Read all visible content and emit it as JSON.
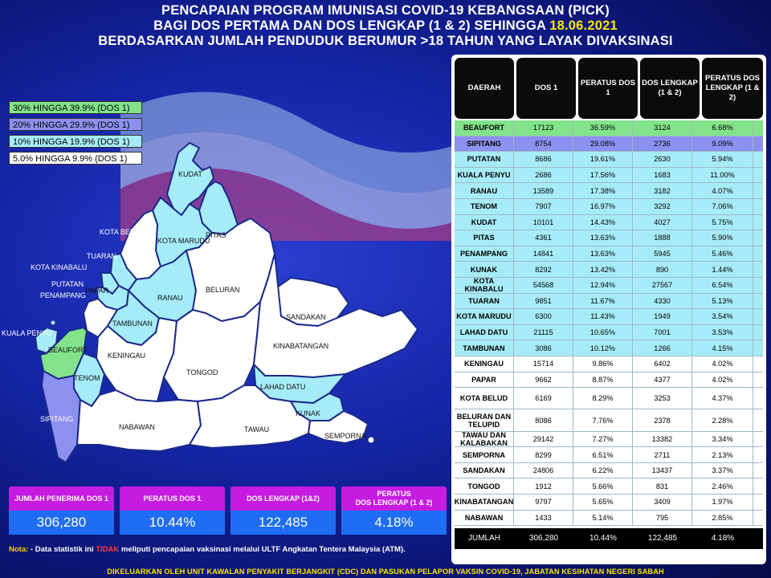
{
  "title": {
    "line1": "PENCAPAIAN PROGRAM IMUNISASI COVID-19 KEBANGSAAN (PICK)",
    "line2_prefix": "BAGI DOS PERTAMA DAN DOS LENGKAP (1 & 2) SEHINGGA ",
    "line2_date": "18.06.2021",
    "line3": "BERDASARKAN JUMLAH PENDUDUK BERUMUR >18 TAHUN YANG LAYAK DIVAKSINASI"
  },
  "legend": [
    {
      "label": "30% HINGGA 39.9% (DOS 1)",
      "color": "#82e38a"
    },
    {
      "label": "20% HINGGA 29.9% (DOS 1)",
      "color": "#8c90ee"
    },
    {
      "label": "10% HINGGA 19.9% (DOS 1)",
      "color": "#a6ecf8"
    },
    {
      "label": "5.0% HINGGA 9.9% (DOS 1)",
      "color": "#ffffff"
    }
  ],
  "map_labels": {
    "kudat": "KUDAT",
    "pitas": "PITAS",
    "kota_belud": "KOTA BELUD",
    "kota_marudu": "KOTA MARUDU",
    "tuaran": "TUARAN",
    "kota_kinabalu": "KOTA KINABALU",
    "putatan": "PUTATAN",
    "penampang": "PENAMPANG",
    "ranau": "RANAU",
    "beluran": "BELURAN",
    "papar": "PAPAR",
    "tambunan": "TAMBUNAN",
    "sandakan": "SANDAKAN",
    "kuala_penyu": "KUALA PENYU",
    "beaufort": "BEAUFORT",
    "keningau": "KENINGAU",
    "kinabatangan": "KINABATANGAN",
    "tongod": "TONGOD",
    "tenom": "TENOM",
    "lahad_datu": "LAHAD DATU",
    "sipitang": "SIPITANG",
    "kunak": "KUNAK",
    "nabawan": "NABAWAN",
    "tawau": "TAWAU",
    "semporna": "SEMPORNA"
  },
  "table": {
    "headers": {
      "daerah": "DAERAH",
      "dos1": "DOS 1",
      "peratus_dos1": "PERATUS DOS 1",
      "dos_lengkap": "DOS LENGKAP (1 & 2)",
      "peratus_dos_lengkap": "PERATUS DOS LENGKAP (1 & 2)"
    },
    "rows": [
      {
        "name": "BEAUFORT",
        "dos1": "17123",
        "p1": "36.59%",
        "dl": "3124",
        "pl": "6.68%",
        "band": "g30"
      },
      {
        "name": "SIPITANG",
        "dos1": "8754",
        "p1": "29.08%",
        "dl": "2736",
        "pl": "9.09%",
        "band": "g20"
      },
      {
        "name": "PUTATAN",
        "dos1": "8686",
        "p1": "19.61%",
        "dl": "2630",
        "pl": "5.94%",
        "band": "g10"
      },
      {
        "name": "KUALA PENYU",
        "dos1": "2686",
        "p1": "17.56%",
        "dl": "1683",
        "pl": "11.00%",
        "band": "g10"
      },
      {
        "name": "RANAU",
        "dos1": "13589",
        "p1": "17.38%",
        "dl": "3182",
        "pl": "4.07%",
        "band": "g10"
      },
      {
        "name": "TENOM",
        "dos1": "7907",
        "p1": "16.97%",
        "dl": "3292",
        "pl": "7.06%",
        "band": "g10"
      },
      {
        "name": "KUDAT",
        "dos1": "10101",
        "p1": "14.43%",
        "dl": "4027",
        "pl": "5.75%",
        "band": "g10"
      },
      {
        "name": "PITAS",
        "dos1": "4361",
        "p1": "13.63%",
        "dl": "1888",
        "pl": "5.90%",
        "band": "g10"
      },
      {
        "name": "PENAMPANG",
        "dos1": "14841",
        "p1": "13.63%",
        "dl": "5945",
        "pl": "5.46%",
        "band": "g10"
      },
      {
        "name": "KUNAK",
        "dos1": "8292",
        "p1": "13.42%",
        "dl": "890",
        "pl": "1.44%",
        "band": "g10"
      },
      {
        "name": "KOTA KINABALU",
        "dos1": "54568",
        "p1": "12.94%",
        "dl": "27567",
        "pl": "6.54%",
        "band": "g10"
      },
      {
        "name": "TUARAN",
        "dos1": "9851",
        "p1": "11.67%",
        "dl": "4330",
        "pl": "5.13%",
        "band": "g10"
      },
      {
        "name": "KOTA MARUDU",
        "dos1": "6300",
        "p1": "11.43%",
        "dl": "1949",
        "pl": "3.54%",
        "band": "g10"
      },
      {
        "name": "LAHAD DATU",
        "dos1": "21115",
        "p1": "10.65%",
        "dl": "7001",
        "pl": "3.53%",
        "band": "g10"
      },
      {
        "name": "TAMBUNAN",
        "dos1": "3086",
        "p1": "10.12%",
        "dl": "1266",
        "pl": "4.15%",
        "band": "g10"
      },
      {
        "name": "KENINGAU",
        "dos1": "15714",
        "p1": "9.86%",
        "dl": "6402",
        "pl": "4.02%",
        "band": "g5"
      },
      {
        "name": "PAPAR",
        "dos1": "9662",
        "p1": "8.87%",
        "dl": "4377",
        "pl": "4.02%",
        "band": "g5"
      },
      {
        "name": "KOTA BELUD",
        "dos1": "6169",
        "p1": "8.29%",
        "dl": "3253",
        "pl": "4.37%",
        "band": "g5",
        "tall": true
      },
      {
        "name": "BELURAN DAN TELUPID",
        "dos1": "8086",
        "p1": "7.76%",
        "dl": "2378",
        "pl": "2.28%",
        "band": "g5",
        "tall": true
      },
      {
        "name": "TAWAU DAN KALABAKAN",
        "dos1": "29142",
        "p1": "7.27%",
        "dl": "13382",
        "pl": "3.34%",
        "band": "g5"
      },
      {
        "name": "SEMPORNA",
        "dos1": "8299",
        "p1": "6.51%",
        "dl": "2711",
        "pl": "2.13%",
        "band": "g5"
      },
      {
        "name": "SANDAKAN",
        "dos1": "24806",
        "p1": "6.22%",
        "dl": "13437",
        "pl": "3.37%",
        "band": "g5"
      },
      {
        "name": "TONGOD",
        "dos1": "1912",
        "p1": "5.66%",
        "dl": "831",
        "pl": "2.46%",
        "band": "g5"
      },
      {
        "name": "KINABATANGAN",
        "dos1": "9797",
        "p1": "5.65%",
        "dl": "3409",
        "pl": "1.97%",
        "band": "g5"
      },
      {
        "name": "NABAWAN",
        "dos1": "1433",
        "p1": "5.14%",
        "dl": "795",
        "pl": "2.85%",
        "band": "g5"
      }
    ],
    "total": {
      "name": "JUMLAH",
      "dos1": "306,280",
      "p1": "10.44%",
      "dl": "122,485",
      "pl": "4.18%"
    }
  },
  "stats": {
    "penerima_label": "JUMLAH PENERIMA DOS 1",
    "penerima_value": "306,280",
    "peratus_label": "PERATUS DOS 1",
    "peratus_value": "10.44%",
    "lengkap_label": "DOS LENGKAP (1&2)",
    "lengkap_value": "122,485",
    "peratus_lengkap_label1": "PERATUS",
    "peratus_lengkap_label2": "DOS LENGKAP (1 & 2)",
    "peratus_lengkap_value": "4.18%"
  },
  "note": {
    "label": "Nota:",
    "text_before": " - Data statistik ini ",
    "highlight": "TIDAK",
    "text_after": " meliputi pencapaian vaksinasi melalui ULTF Angkatan Tentera Malaysia (ATM)."
  },
  "footer": "DIKELUARKAN OLEH UNIT KAWALAN PENYAKIT BERJANGKIT (CDC) DAN PASUKAN PELAPOR VAKSIN COVID-19, JABATAN KESIHATAN NEGERI SABAH",
  "colors": {
    "band_30": "#82e38a",
    "band_20": "#8c90ee",
    "band_10": "#a6ecf8",
    "band_5": "#ffffff",
    "date": "#ffe600",
    "stat_head": "#c51ce0",
    "stat_value": "#1f6df2"
  }
}
